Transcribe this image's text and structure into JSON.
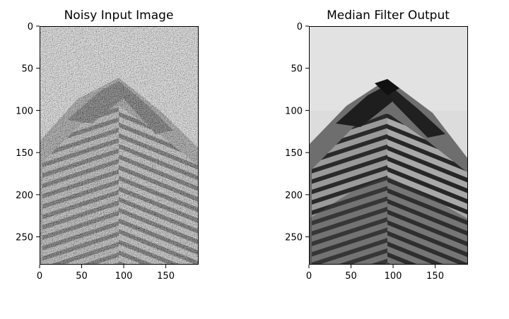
{
  "panels": [
    {
      "title": "Noisy Input Image",
      "image": "noisy grayscale photo of a building roof with salt-and-pepper noise",
      "x_ticks": [
        "0",
        "50",
        "100",
        "150"
      ],
      "y_ticks": [
        "0",
        "50",
        "100",
        "150",
        "200",
        "250"
      ],
      "x_range": [
        0,
        189
      ],
      "y_range": [
        0,
        283
      ]
    },
    {
      "title": "Median Filter Output",
      "image": "same building photo after median filtering (smoothed)",
      "x_ticks": [
        "0",
        "50",
        "100",
        "150"
      ],
      "y_ticks": [
        "0",
        "50",
        "100",
        "150",
        "200",
        "250"
      ],
      "x_range": [
        0,
        189
      ],
      "y_range": [
        0,
        283
      ]
    }
  ]
}
